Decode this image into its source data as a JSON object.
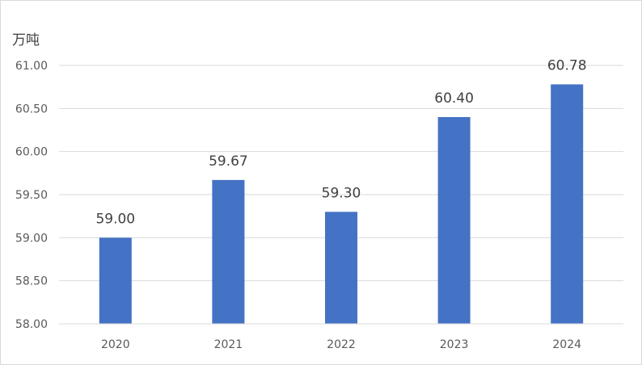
{
  "chart_data": {
    "type": "bar",
    "unit_label": "万吨",
    "categories": [
      "2020",
      "2021",
      "2022",
      "2023",
      "2024"
    ],
    "values": [
      59.0,
      59.67,
      59.3,
      60.4,
      60.78
    ],
    "data_labels": [
      "59.00",
      "59.67",
      "59.30",
      "60.40",
      "60.78"
    ],
    "ylim": [
      58.0,
      61.0
    ],
    "y_ticks": [
      58.0,
      58.5,
      59.0,
      59.5,
      60.0,
      60.5,
      61.0
    ],
    "y_tick_labels": [
      "58.00",
      "58.50",
      "59.00",
      "59.50",
      "60.00",
      "60.50",
      "61.00"
    ],
    "grid": true,
    "bar_color": "#4472C4",
    "grid_color": "#d9d9d9"
  }
}
